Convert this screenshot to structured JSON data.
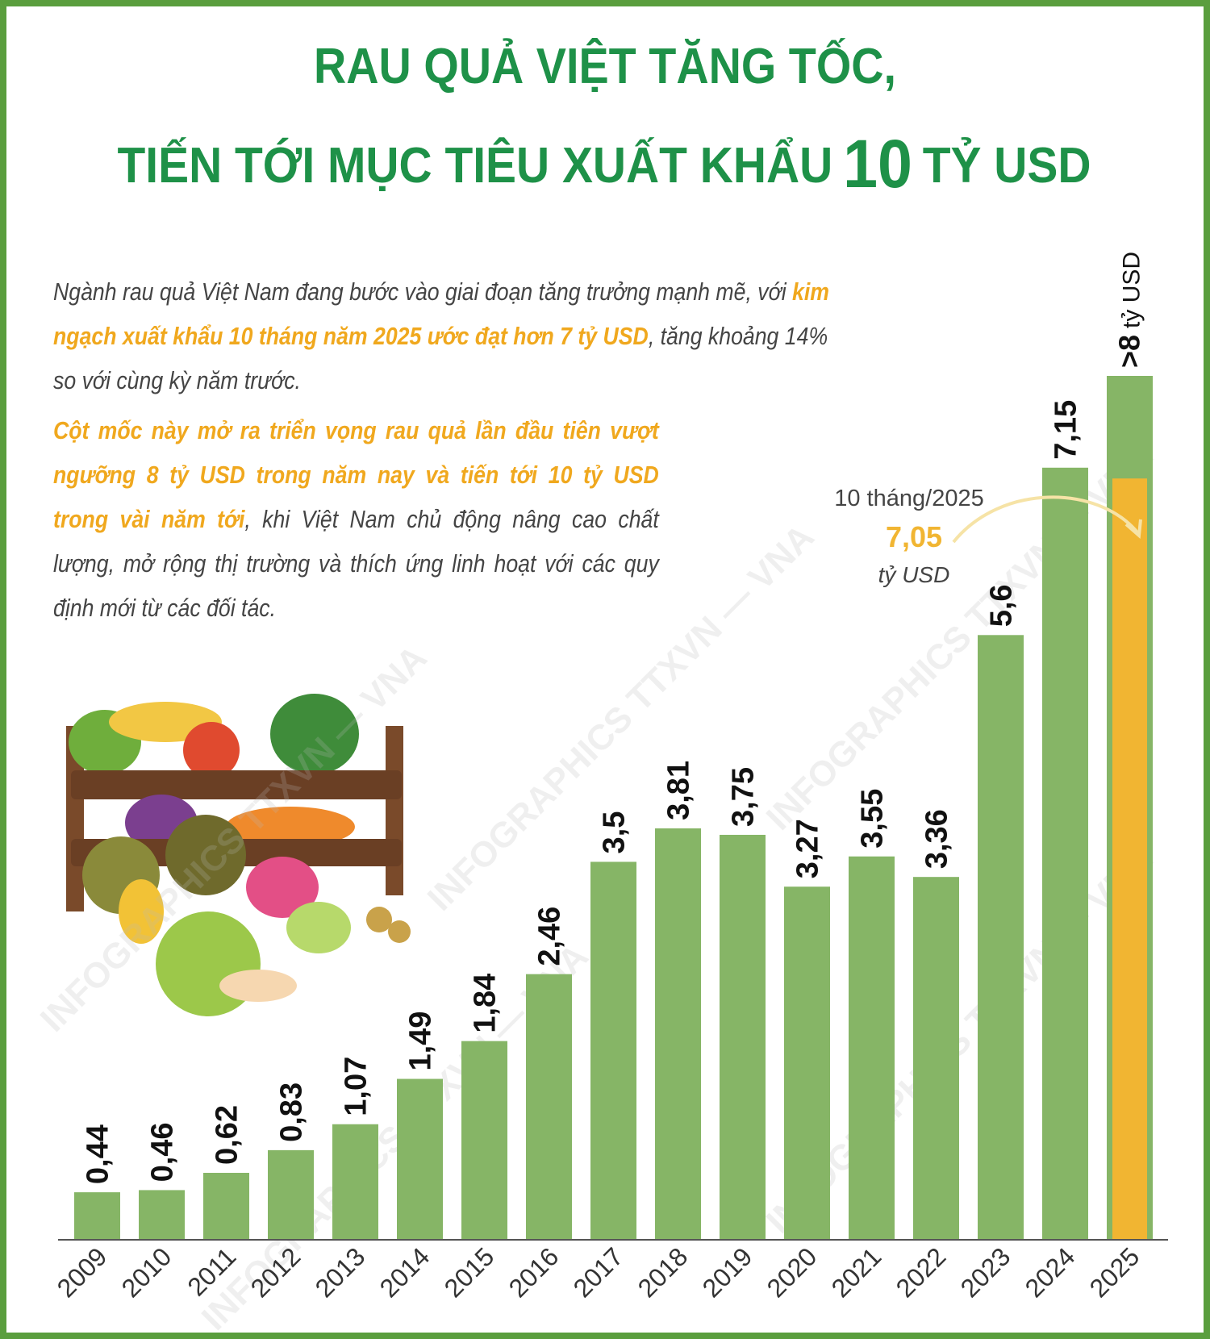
{
  "title_lines": [
    [
      {
        "text": "RAU QUẢ VIỆT TĂNG TỐC,"
      }
    ],
    [
      {
        "text": "TIẾN TỚI MỤC TIÊU XUẤT KHẨU"
      },
      {
        "text": "10",
        "emphasis": true
      },
      {
        "text": "TỶ USD"
      }
    ]
  ],
  "intro": [
    [
      {
        "text": "Ngành rau quả Việt Nam đang bước vào giai đoạn tăng trưởng mạnh mẽ, với"
      },
      {
        "text": "kim ngạch xuất khẩu 10 tháng năm 2025 ước đạt hơn 7 tỷ USD",
        "highlight": true
      },
      {
        "text": ", tăng khoảng 14% so với cùng kỳ năm trước."
      }
    ],
    [
      {
        "text": "Cột mốc này mở ra triển vọng rau quả lần đầu tiên vượt ngưỡng 8 tỷ USD trong năm nay và tiến tới 10 tỷ USD trong vài năm tới",
        "highlight": true
      },
      {
        "text": ", khi Việt Nam chủ động nâng cao chất lượng, mở rộng thị trường và thích ứng linh hoạt với các quy định mới từ các đối tác."
      }
    ]
  ],
  "watermark": "INFOGRAPHICS TTXVN — VNA",
  "chart_data": {
    "type": "bar",
    "categories": [
      "2009",
      "2010",
      "2011",
      "2012",
      "2013",
      "2014",
      "2015",
      "2016",
      "2017",
      "2018",
      "2019",
      "2020",
      "2021",
      "2022",
      "2023",
      "2024",
      "2025"
    ],
    "values": [
      0.44,
      0.46,
      0.62,
      0.83,
      1.07,
      1.49,
      1.84,
      2.46,
      3.5,
      3.81,
      3.75,
      3.27,
      3.55,
      3.36,
      5.6,
      7.15,
      8
    ],
    "value_labels": [
      "0,44",
      "0,46",
      "0,62",
      "0,83",
      "1,07",
      "1,49",
      "1,84",
      "2,46",
      "3,5",
      "3,81",
      "3,75",
      "3,27",
      "3,55",
      "3,36",
      "5,6",
      "7,15",
      ">8"
    ],
    "unit": "tỷ USD",
    "color": "#86b566",
    "partial": {
      "label": "10 tháng/2025",
      "value": 7.05,
      "value_label": "7,05",
      "unit": "tỷ USD",
      "color": "#f1b532"
    }
  }
}
